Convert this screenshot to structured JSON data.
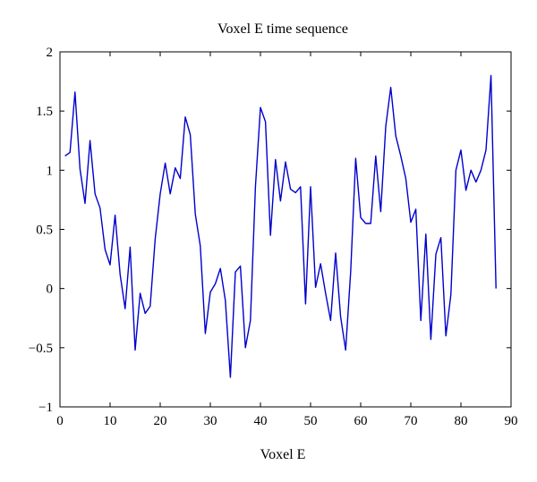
{
  "chart_data": {
    "type": "line",
    "title": "Voxel E time sequence",
    "xlabel": "Voxel E",
    "ylabel": "",
    "xlim": [
      0,
      90
    ],
    "ylim": [
      -1,
      2
    ],
    "xticks": [
      0,
      10,
      20,
      30,
      40,
      50,
      60,
      70,
      80,
      90
    ],
    "yticks": [
      2,
      1.5,
      1,
      0.5,
      0,
      -0.5,
      -1
    ],
    "xtick_labels": [
      "0",
      "10",
      "20",
      "30",
      "40",
      "50",
      "60",
      "70",
      "80",
      "90"
    ],
    "ytick_labels": [
      "2",
      "1.5",
      "1",
      "0.5",
      "0",
      "−0.5",
      "−1"
    ],
    "grid": false,
    "series": [
      {
        "color": "#0000cc",
        "x": [
          1,
          2,
          3,
          4,
          5,
          6,
          7,
          8,
          9,
          10,
          11,
          12,
          13,
          14,
          15,
          16,
          17,
          18,
          19,
          20,
          21,
          22,
          23,
          24,
          25,
          26,
          27,
          28,
          29,
          30,
          31,
          32,
          33,
          34,
          35,
          36,
          37,
          38,
          39,
          40,
          41,
          42,
          43,
          44,
          45,
          46,
          47,
          48,
          49,
          50,
          51,
          52,
          53,
          54,
          55,
          56,
          57,
          58,
          59,
          60,
          61,
          62,
          63,
          64,
          65,
          66,
          67,
          68,
          69,
          70,
          71,
          72,
          73,
          74,
          75,
          76,
          77,
          78,
          79,
          80,
          81,
          82,
          83,
          84,
          85,
          86,
          87
        ],
        "values": [
          1.12,
          1.15,
          1.66,
          1.01,
          0.72,
          1.25,
          0.8,
          0.68,
          0.33,
          0.2,
          0.62,
          0.12,
          -0.17,
          0.35,
          -0.52,
          -0.04,
          -0.21,
          -0.15,
          0.42,
          0.8,
          1.06,
          0.8,
          1.02,
          0.93,
          1.45,
          1.3,
          0.63,
          0.36,
          -0.38,
          -0.03,
          0.04,
          0.17,
          -0.1,
          -0.75,
          0.14,
          0.19,
          -0.5,
          -0.27,
          0.86,
          1.53,
          1.41,
          0.45,
          1.09,
          0.74,
          1.07,
          0.84,
          0.81,
          0.86,
          -0.13,
          0.86,
          0.01,
          0.21,
          -0.04,
          -0.27,
          0.3,
          -0.24,
          -0.52,
          0.14,
          1.1,
          0.6,
          0.55,
          0.55,
          1.12,
          0.65,
          1.37,
          1.7,
          1.29,
          1.12,
          0.93,
          0.56,
          0.67,
          -0.27,
          0.46,
          -0.43,
          0.29,
          0.43,
          -0.4,
          -0.05,
          1.0,
          1.17,
          0.83,
          1.0,
          0.9,
          1.0,
          1.17,
          1.8,
          0.0
        ]
      }
    ]
  }
}
